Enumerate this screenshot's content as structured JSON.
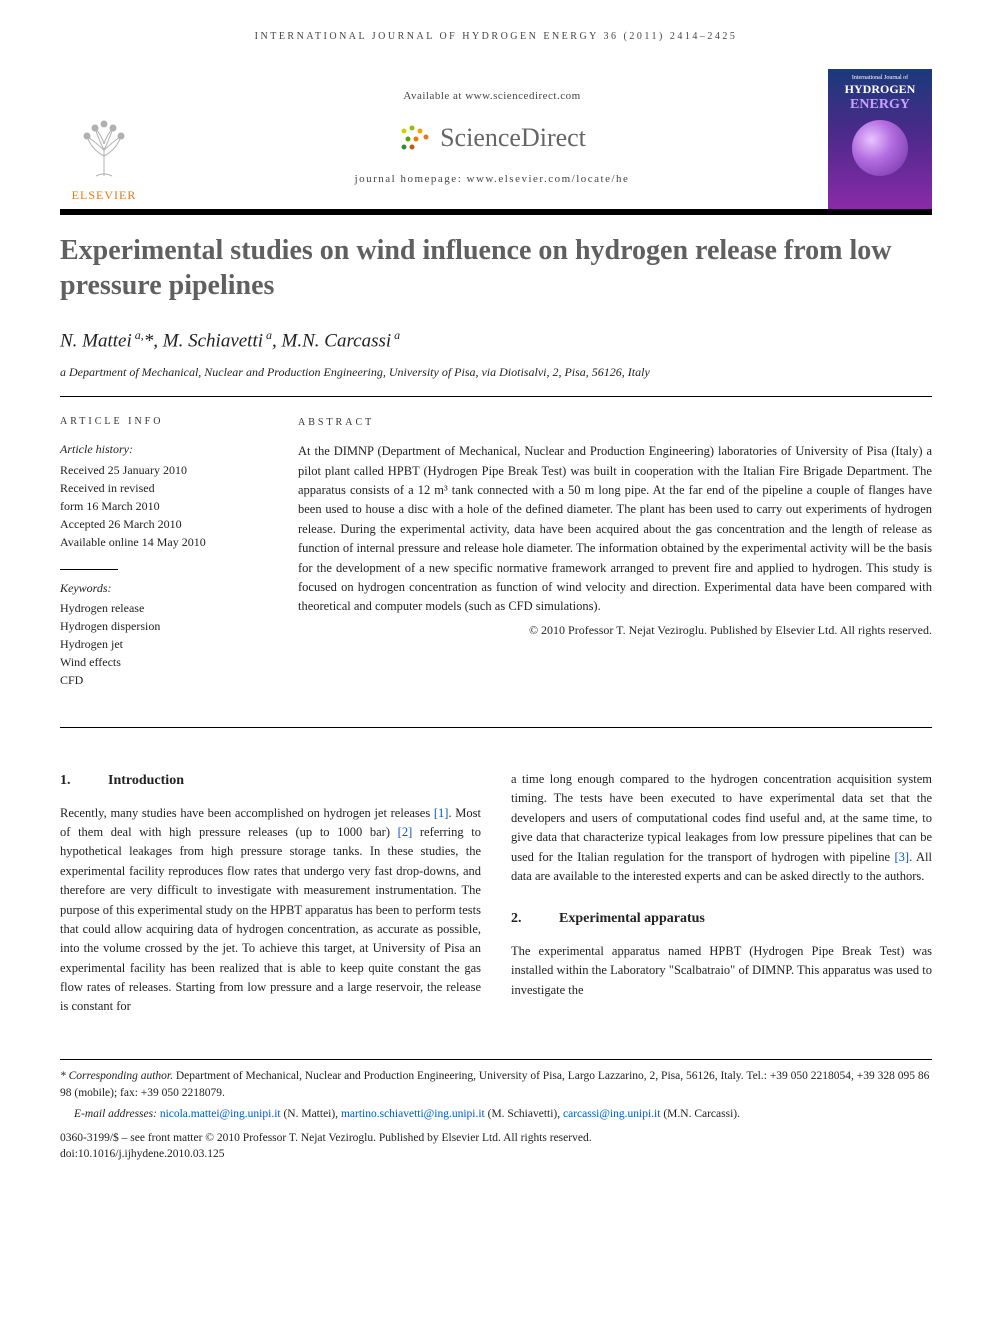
{
  "running_head": "INTERNATIONAL JOURNAL OF HYDROGEN ENERGY 36 (2011) 2414–2425",
  "masthead": {
    "publisher_name": "ELSEVIER",
    "available_line": "Available at www.sciencedirect.com",
    "platform_name": "ScienceDirect",
    "homepage_line": "journal homepage: www.elsevier.com/locate/he",
    "cover_top": "International Journal of",
    "cover_h1": "HYDROGEN",
    "cover_h2": "ENERGY"
  },
  "title": "Experimental studies on wind influence on hydrogen release from low pressure pipelines",
  "authors_html": "N. Mattei<sup> a,</sup>*, M. Schiavetti<sup> a</sup>, M.N. Carcassi<sup> a</sup>",
  "affiliation": "a Department of Mechanical, Nuclear and Production Engineering, University of Pisa, via Diotisalvi, 2, Pisa, 56126, Italy",
  "info": {
    "head": "ARTICLE INFO",
    "history_label": "Article history:",
    "history": [
      "Received 25 January 2010",
      "Received in revised",
      "form 16 March 2010",
      "Accepted 26 March 2010",
      "Available online 14 May 2010"
    ],
    "keywords_label": "Keywords:",
    "keywords": [
      "Hydrogen release",
      "Hydrogen dispersion",
      "Hydrogen jet",
      "Wind effects",
      "CFD"
    ]
  },
  "abstract": {
    "head": "ABSTRACT",
    "text": "At the DIMNP (Department of Mechanical, Nuclear and Production Engineering) laboratories of University of Pisa (Italy) a pilot plant called HPBT (Hydrogen Pipe Break Test) was built in cooperation with the Italian Fire Brigade Department. The apparatus consists of a 12 m³ tank connected with a 50 m long pipe. At the far end of the pipeline a couple of flanges have been used to house a disc with a hole of the defined diameter. The plant has been used to carry out experiments of hydrogen release. During the experimental activity, data have been acquired about the gas concentration and the length of release as function of internal pressure and release hole diameter. The information obtained by the experimental activity will be the basis for the development of a new specific normative framework arranged to prevent fire and applied to hydrogen. This study is focused on hydrogen concentration as function of wind velocity and direction. Experimental data have been compared with theoretical and computer models (such as CFD simulations).",
    "copyright": "© 2010 Professor T. Nejat Veziroglu. Published by Elsevier Ltd. All rights reserved."
  },
  "sections": {
    "s1": {
      "num": "1.",
      "title": "Introduction"
    },
    "s2": {
      "num": "2.",
      "title": "Experimental apparatus"
    }
  },
  "body": {
    "p1a": "Recently, many studies have been accomplished on hydrogen jet releases ",
    "r1": "[1]",
    "p1b": ". Most of them deal with high pressure releases (up to 1000 bar) ",
    "r2": "[2]",
    "p1c": " referring to hypothetical leakages from high pressure storage tanks. In these studies, the experimental facility reproduces flow rates that undergo very fast drop-downs, and therefore are very difficult to investigate with measurement instrumentation. The purpose of this experimental study on the HPBT apparatus has been to perform tests that could allow acquiring data of hydrogen concentration, as accurate as possible, into the volume crossed by the jet. To achieve this target, at University of Pisa an experimental facility has been realized that is able to keep quite constant the gas flow rates of releases. Starting from low pressure and a large reservoir, the release is constant for",
    "p2a": "a time long enough compared to the hydrogen concentration acquisition system timing. The tests have been executed to have experimental data set that the developers and users of computational codes find useful and, at the same time, to give data that characterize typical leakages from low pressure pipelines that can be used for the Italian regulation for the transport of hydrogen with pipeline ",
    "r3": "[3]",
    "p2b": ". All data are available to the interested experts and can be asked directly to the authors.",
    "p3": "The experimental apparatus named HPBT (Hydrogen Pipe Break Test) was installed within the Laboratory \"Scalbatraio\" of DIMNP. This apparatus was used to investigate the"
  },
  "footnotes": {
    "corr_label": "* Corresponding author.",
    "corr_text": " Department of Mechanical, Nuclear and Production Engineering, University of Pisa, Largo Lazzarino, 2, Pisa, 56126, Italy. Tel.: +39 050 2218054, +39 328 095 86 98 (mobile); fax: +39 050 2218079.",
    "email_label": "E-mail addresses: ",
    "e1": "nicola.mattei@ing.unipi.it",
    "e1_who": " (N. Mattei), ",
    "e2": "martino.schiavetti@ing.unipi.it",
    "e2_who": " (M. Schiavetti), ",
    "e3": "carcassi@ing.unipi.it",
    "e3_who": " (M.N. Carcassi).",
    "issn_line": "0360-3199/$ – see front matter © 2010 Professor T. Nejat Veziroglu. Published by Elsevier Ltd. All rights reserved.",
    "doi_line": "doi:10.1016/j.ijhydene.2010.03.125"
  },
  "colors": {
    "elsevier_orange": "#e67817",
    "link_blue": "#0056c7",
    "title_gray": "#606060"
  }
}
